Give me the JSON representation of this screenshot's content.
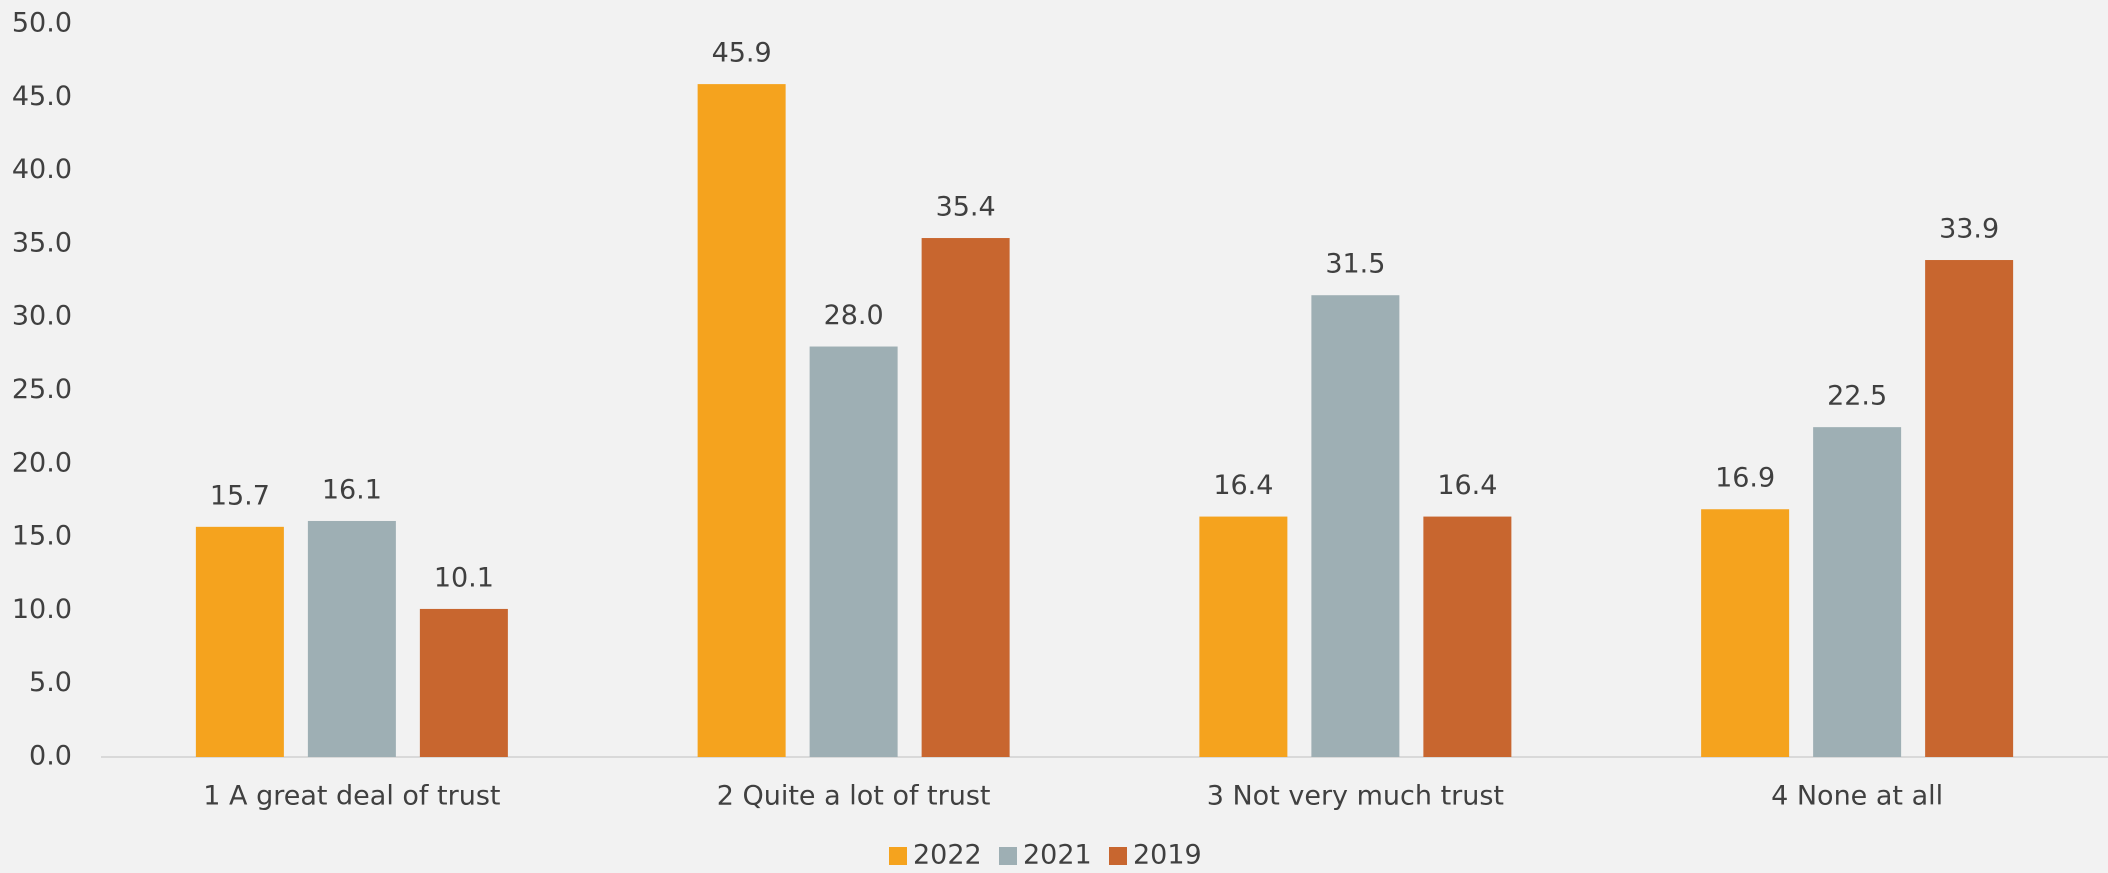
{
  "chart_data": {
    "type": "bar",
    "categories": [
      "1 A great deal of trust",
      "2 Quite a lot of trust",
      "3 Not very much trust",
      "4 None at all"
    ],
    "series": [
      {
        "name": "2022",
        "color": "#f5a31e",
        "values": [
          15.7,
          45.9,
          16.4,
          16.9
        ],
        "value_labels": [
          "15.7",
          "45.9",
          "16.4",
          "16.9"
        ]
      },
      {
        "name": "2021",
        "color": "#9eafb4",
        "values": [
          16.1,
          28.0,
          31.5,
          22.5
        ],
        "value_labels": [
          "16.1",
          "28.0",
          "31.5",
          "22.5"
        ]
      },
      {
        "name": "2019",
        "color": "#c8662f",
        "values": [
          10.1,
          35.4,
          16.4,
          33.9
        ],
        "value_labels": [
          "10.1",
          "35.4",
          "16.4",
          "33.9"
        ]
      }
    ],
    "ylim": [
      0,
      50
    ],
    "yticks": [
      {
        "value": 0,
        "label": "0.0"
      },
      {
        "value": 5,
        "label": "5.0"
      },
      {
        "value": 10,
        "label": "10.0"
      },
      {
        "value": 15,
        "label": "15.0"
      },
      {
        "value": 20,
        "label": "20.0"
      },
      {
        "value": 25,
        "label": "25.0"
      },
      {
        "value": 30,
        "label": "30.0"
      },
      {
        "value": 35,
        "label": "35.0"
      },
      {
        "value": 40,
        "label": "40.0"
      },
      {
        "value": 45,
        "label": "45.0"
      },
      {
        "value": 50,
        "label": "50.0"
      }
    ],
    "grid": false,
    "legend": "bottom"
  }
}
